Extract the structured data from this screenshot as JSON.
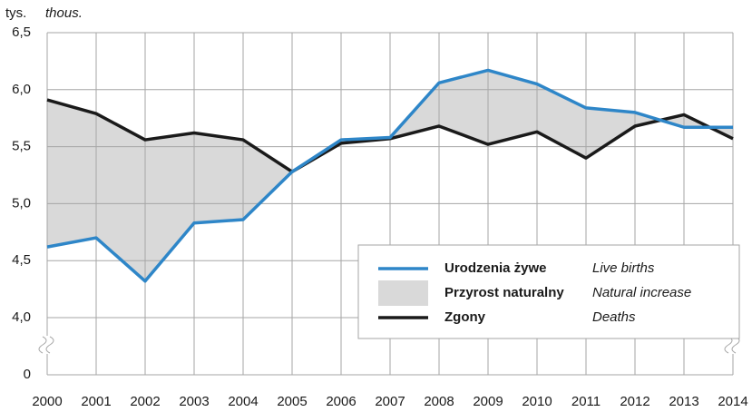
{
  "chart_data": {
    "type": "line",
    "unit_label": "tys.",
    "unit_label_en": "thous.",
    "x": [
      2000,
      2001,
      2002,
      2003,
      2004,
      2005,
      2006,
      2007,
      2008,
      2009,
      2010,
      2011,
      2012,
      2013,
      2014
    ],
    "xlim": [
      2000,
      2014
    ],
    "series": [
      {
        "name": "Urodzenia żywe",
        "name_en": "Live births",
        "color": "#2e86c8",
        "values": [
          4.62,
          4.7,
          4.32,
          4.83,
          4.86,
          5.28,
          5.56,
          5.58,
          6.06,
          6.17,
          6.05,
          5.84,
          5.8,
          5.67,
          5.67
        ]
      },
      {
        "name": "Zgony",
        "name_en": "Deaths",
        "color": "#1a1a1a",
        "values": [
          5.91,
          5.79,
          5.56,
          5.62,
          5.56,
          5.28,
          5.53,
          5.57,
          5.68,
          5.52,
          5.63,
          5.4,
          5.68,
          5.78,
          5.57
        ]
      }
    ],
    "area": {
      "name": "Przyrost naturalny",
      "name_en": "Natural increase",
      "color": "#d9d9d9"
    },
    "ylim": [
      4.0,
      6.5
    ],
    "yticks": [
      {
        "value": 0,
        "label": "0"
      },
      {
        "value": 4.0,
        "label": "4,0"
      },
      {
        "value": 4.5,
        "label": "4,5"
      },
      {
        "value": 5.0,
        "label": "5,0"
      },
      {
        "value": 5.5,
        "label": "5,5"
      },
      {
        "value": 6.0,
        "label": "6,0"
      },
      {
        "value": 6.5,
        "label": "6,5"
      }
    ],
    "axis_break": true,
    "grid": true
  }
}
